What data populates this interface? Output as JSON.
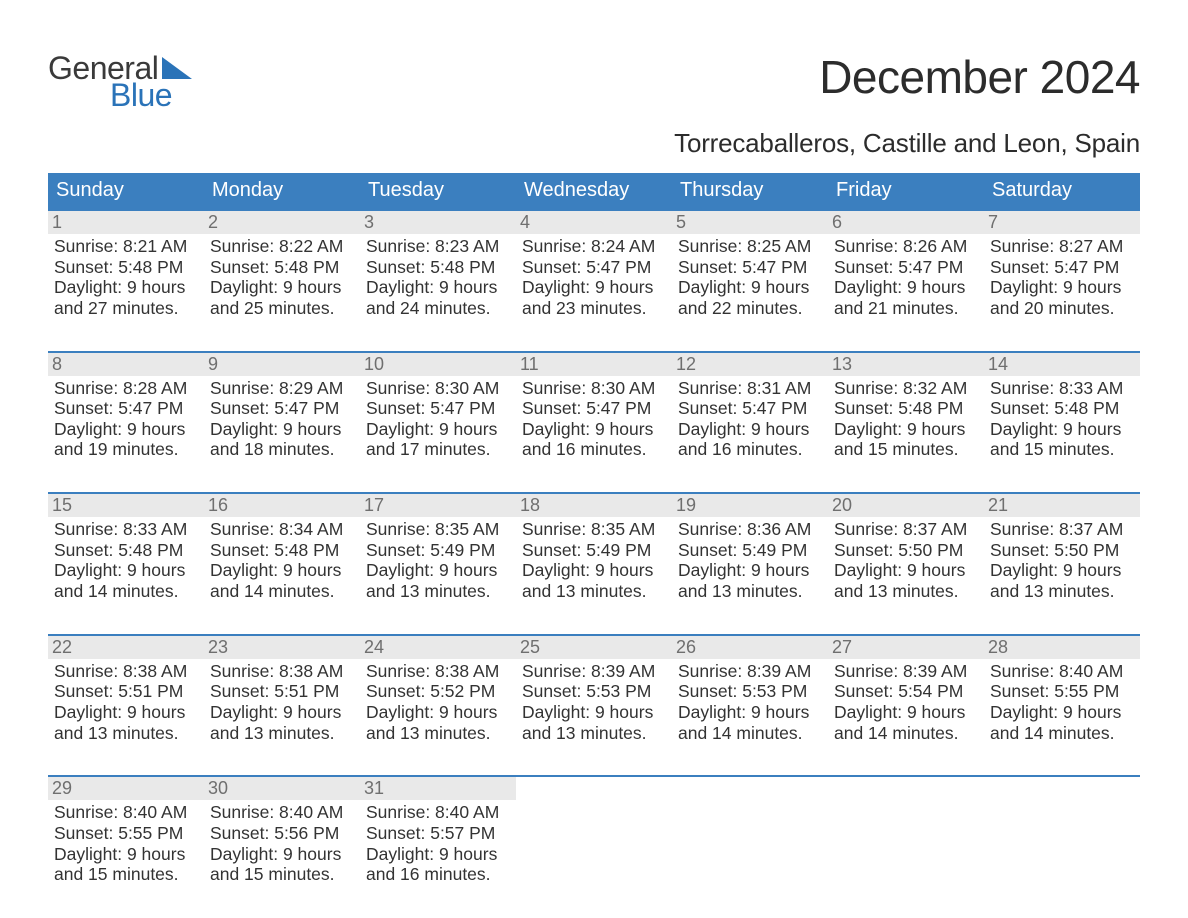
{
  "brand": {
    "line1": "General",
    "line2": "Blue"
  },
  "title": "December 2024",
  "subtitle": "Torrecaballeros, Castille and Leon, Spain",
  "colors": {
    "header_bg": "#3b7fbf",
    "header_text": "#ffffff",
    "week_border": "#3b7fbf",
    "daynum_bg": "#e9e9e9",
    "daynum_text": "#6f6f6f",
    "body_text": "#333333",
    "brand_gray": "#3a3a3a",
    "brand_blue": "#2a73b8",
    "background": "#ffffff"
  },
  "typography": {
    "title_fontsize": 46,
    "subtitle_fontsize": 26,
    "dayhead_fontsize": 20,
    "daynum_fontsize": 18,
    "info_fontsize": 17.5,
    "logo_fontsize": 32
  },
  "day_headers": [
    "Sunday",
    "Monday",
    "Tuesday",
    "Wednesday",
    "Thursday",
    "Friday",
    "Saturday"
  ],
  "weeks": [
    [
      {
        "n": "1",
        "sunrise": "Sunrise: 8:21 AM",
        "sunset": "Sunset: 5:48 PM",
        "d1": "Daylight: 9 hours",
        "d2": "and 27 minutes."
      },
      {
        "n": "2",
        "sunrise": "Sunrise: 8:22 AM",
        "sunset": "Sunset: 5:48 PM",
        "d1": "Daylight: 9 hours",
        "d2": "and 25 minutes."
      },
      {
        "n": "3",
        "sunrise": "Sunrise: 8:23 AM",
        "sunset": "Sunset: 5:48 PM",
        "d1": "Daylight: 9 hours",
        "d2": "and 24 minutes."
      },
      {
        "n": "4",
        "sunrise": "Sunrise: 8:24 AM",
        "sunset": "Sunset: 5:47 PM",
        "d1": "Daylight: 9 hours",
        "d2": "and 23 minutes."
      },
      {
        "n": "5",
        "sunrise": "Sunrise: 8:25 AM",
        "sunset": "Sunset: 5:47 PM",
        "d1": "Daylight: 9 hours",
        "d2": "and 22 minutes."
      },
      {
        "n": "6",
        "sunrise": "Sunrise: 8:26 AM",
        "sunset": "Sunset: 5:47 PM",
        "d1": "Daylight: 9 hours",
        "d2": "and 21 minutes."
      },
      {
        "n": "7",
        "sunrise": "Sunrise: 8:27 AM",
        "sunset": "Sunset: 5:47 PM",
        "d1": "Daylight: 9 hours",
        "d2": "and 20 minutes."
      }
    ],
    [
      {
        "n": "8",
        "sunrise": "Sunrise: 8:28 AM",
        "sunset": "Sunset: 5:47 PM",
        "d1": "Daylight: 9 hours",
        "d2": "and 19 minutes."
      },
      {
        "n": "9",
        "sunrise": "Sunrise: 8:29 AM",
        "sunset": "Sunset: 5:47 PM",
        "d1": "Daylight: 9 hours",
        "d2": "and 18 minutes."
      },
      {
        "n": "10",
        "sunrise": "Sunrise: 8:30 AM",
        "sunset": "Sunset: 5:47 PM",
        "d1": "Daylight: 9 hours",
        "d2": "and 17 minutes."
      },
      {
        "n": "11",
        "sunrise": "Sunrise: 8:30 AM",
        "sunset": "Sunset: 5:47 PM",
        "d1": "Daylight: 9 hours",
        "d2": "and 16 minutes."
      },
      {
        "n": "12",
        "sunrise": "Sunrise: 8:31 AM",
        "sunset": "Sunset: 5:47 PM",
        "d1": "Daylight: 9 hours",
        "d2": "and 16 minutes."
      },
      {
        "n": "13",
        "sunrise": "Sunrise: 8:32 AM",
        "sunset": "Sunset: 5:48 PM",
        "d1": "Daylight: 9 hours",
        "d2": "and 15 minutes."
      },
      {
        "n": "14",
        "sunrise": "Sunrise: 8:33 AM",
        "sunset": "Sunset: 5:48 PM",
        "d1": "Daylight: 9 hours",
        "d2": "and 15 minutes."
      }
    ],
    [
      {
        "n": "15",
        "sunrise": "Sunrise: 8:33 AM",
        "sunset": "Sunset: 5:48 PM",
        "d1": "Daylight: 9 hours",
        "d2": "and 14 minutes."
      },
      {
        "n": "16",
        "sunrise": "Sunrise: 8:34 AM",
        "sunset": "Sunset: 5:48 PM",
        "d1": "Daylight: 9 hours",
        "d2": "and 14 minutes."
      },
      {
        "n": "17",
        "sunrise": "Sunrise: 8:35 AM",
        "sunset": "Sunset: 5:49 PM",
        "d1": "Daylight: 9 hours",
        "d2": "and 13 minutes."
      },
      {
        "n": "18",
        "sunrise": "Sunrise: 8:35 AM",
        "sunset": "Sunset: 5:49 PM",
        "d1": "Daylight: 9 hours",
        "d2": "and 13 minutes."
      },
      {
        "n": "19",
        "sunrise": "Sunrise: 8:36 AM",
        "sunset": "Sunset: 5:49 PM",
        "d1": "Daylight: 9 hours",
        "d2": "and 13 minutes."
      },
      {
        "n": "20",
        "sunrise": "Sunrise: 8:37 AM",
        "sunset": "Sunset: 5:50 PM",
        "d1": "Daylight: 9 hours",
        "d2": "and 13 minutes."
      },
      {
        "n": "21",
        "sunrise": "Sunrise: 8:37 AM",
        "sunset": "Sunset: 5:50 PM",
        "d1": "Daylight: 9 hours",
        "d2": "and 13 minutes."
      }
    ],
    [
      {
        "n": "22",
        "sunrise": "Sunrise: 8:38 AM",
        "sunset": "Sunset: 5:51 PM",
        "d1": "Daylight: 9 hours",
        "d2": "and 13 minutes."
      },
      {
        "n": "23",
        "sunrise": "Sunrise: 8:38 AM",
        "sunset": "Sunset: 5:51 PM",
        "d1": "Daylight: 9 hours",
        "d2": "and 13 minutes."
      },
      {
        "n": "24",
        "sunrise": "Sunrise: 8:38 AM",
        "sunset": "Sunset: 5:52 PM",
        "d1": "Daylight: 9 hours",
        "d2": "and 13 minutes."
      },
      {
        "n": "25",
        "sunrise": "Sunrise: 8:39 AM",
        "sunset": "Sunset: 5:53 PM",
        "d1": "Daylight: 9 hours",
        "d2": "and 13 minutes."
      },
      {
        "n": "26",
        "sunrise": "Sunrise: 8:39 AM",
        "sunset": "Sunset: 5:53 PM",
        "d1": "Daylight: 9 hours",
        "d2": "and 14 minutes."
      },
      {
        "n": "27",
        "sunrise": "Sunrise: 8:39 AM",
        "sunset": "Sunset: 5:54 PM",
        "d1": "Daylight: 9 hours",
        "d2": "and 14 minutes."
      },
      {
        "n": "28",
        "sunrise": "Sunrise: 8:40 AM",
        "sunset": "Sunset: 5:55 PM",
        "d1": "Daylight: 9 hours",
        "d2": "and 14 minutes."
      }
    ],
    [
      {
        "n": "29",
        "sunrise": "Sunrise: 8:40 AM",
        "sunset": "Sunset: 5:55 PM",
        "d1": "Daylight: 9 hours",
        "d2": "and 15 minutes."
      },
      {
        "n": "30",
        "sunrise": "Sunrise: 8:40 AM",
        "sunset": "Sunset: 5:56 PM",
        "d1": "Daylight: 9 hours",
        "d2": "and 15 minutes."
      },
      {
        "n": "31",
        "sunrise": "Sunrise: 8:40 AM",
        "sunset": "Sunset: 5:57 PM",
        "d1": "Daylight: 9 hours",
        "d2": "and 16 minutes."
      },
      {
        "empty": true
      },
      {
        "empty": true
      },
      {
        "empty": true
      },
      {
        "empty": true
      }
    ]
  ]
}
